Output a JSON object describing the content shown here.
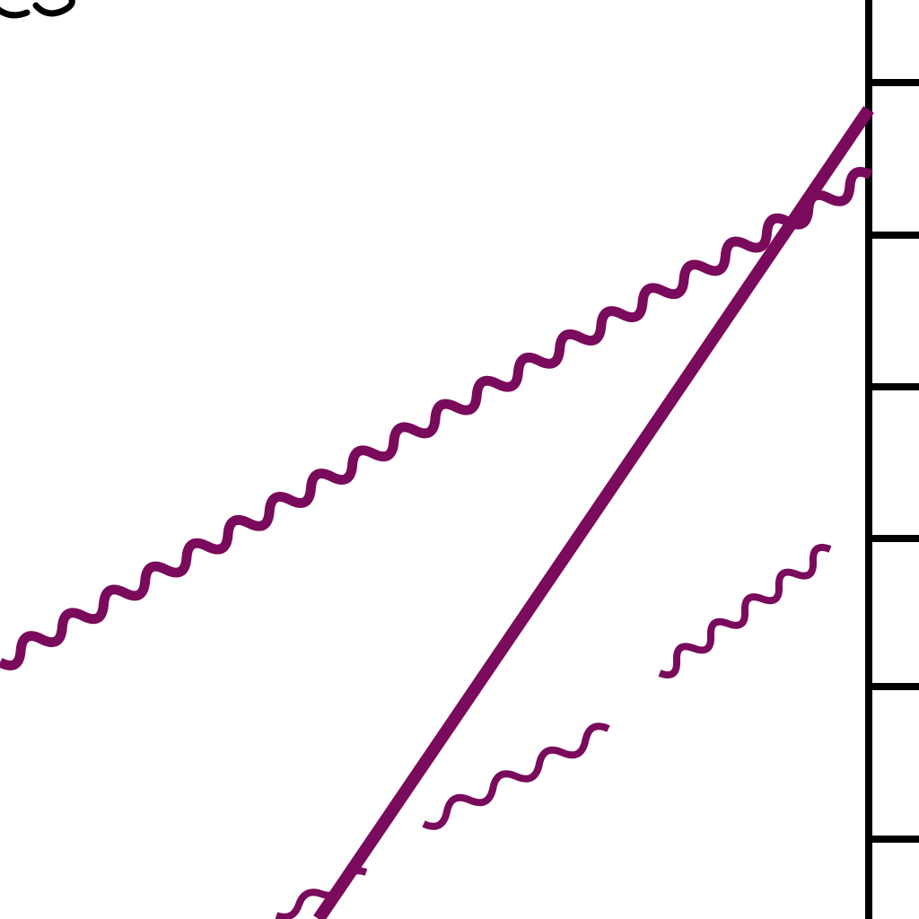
{
  "diagram": {
    "line_color": "#7a0a5c",
    "axis_color": "#000000",
    "background": "#ffffff",
    "elements": [
      "straight-diagonal-line",
      "upper-wavy-line",
      "lower-wavy-segment-left",
      "lower-wavy-segment-right",
      "right-tick-bar"
    ]
  }
}
